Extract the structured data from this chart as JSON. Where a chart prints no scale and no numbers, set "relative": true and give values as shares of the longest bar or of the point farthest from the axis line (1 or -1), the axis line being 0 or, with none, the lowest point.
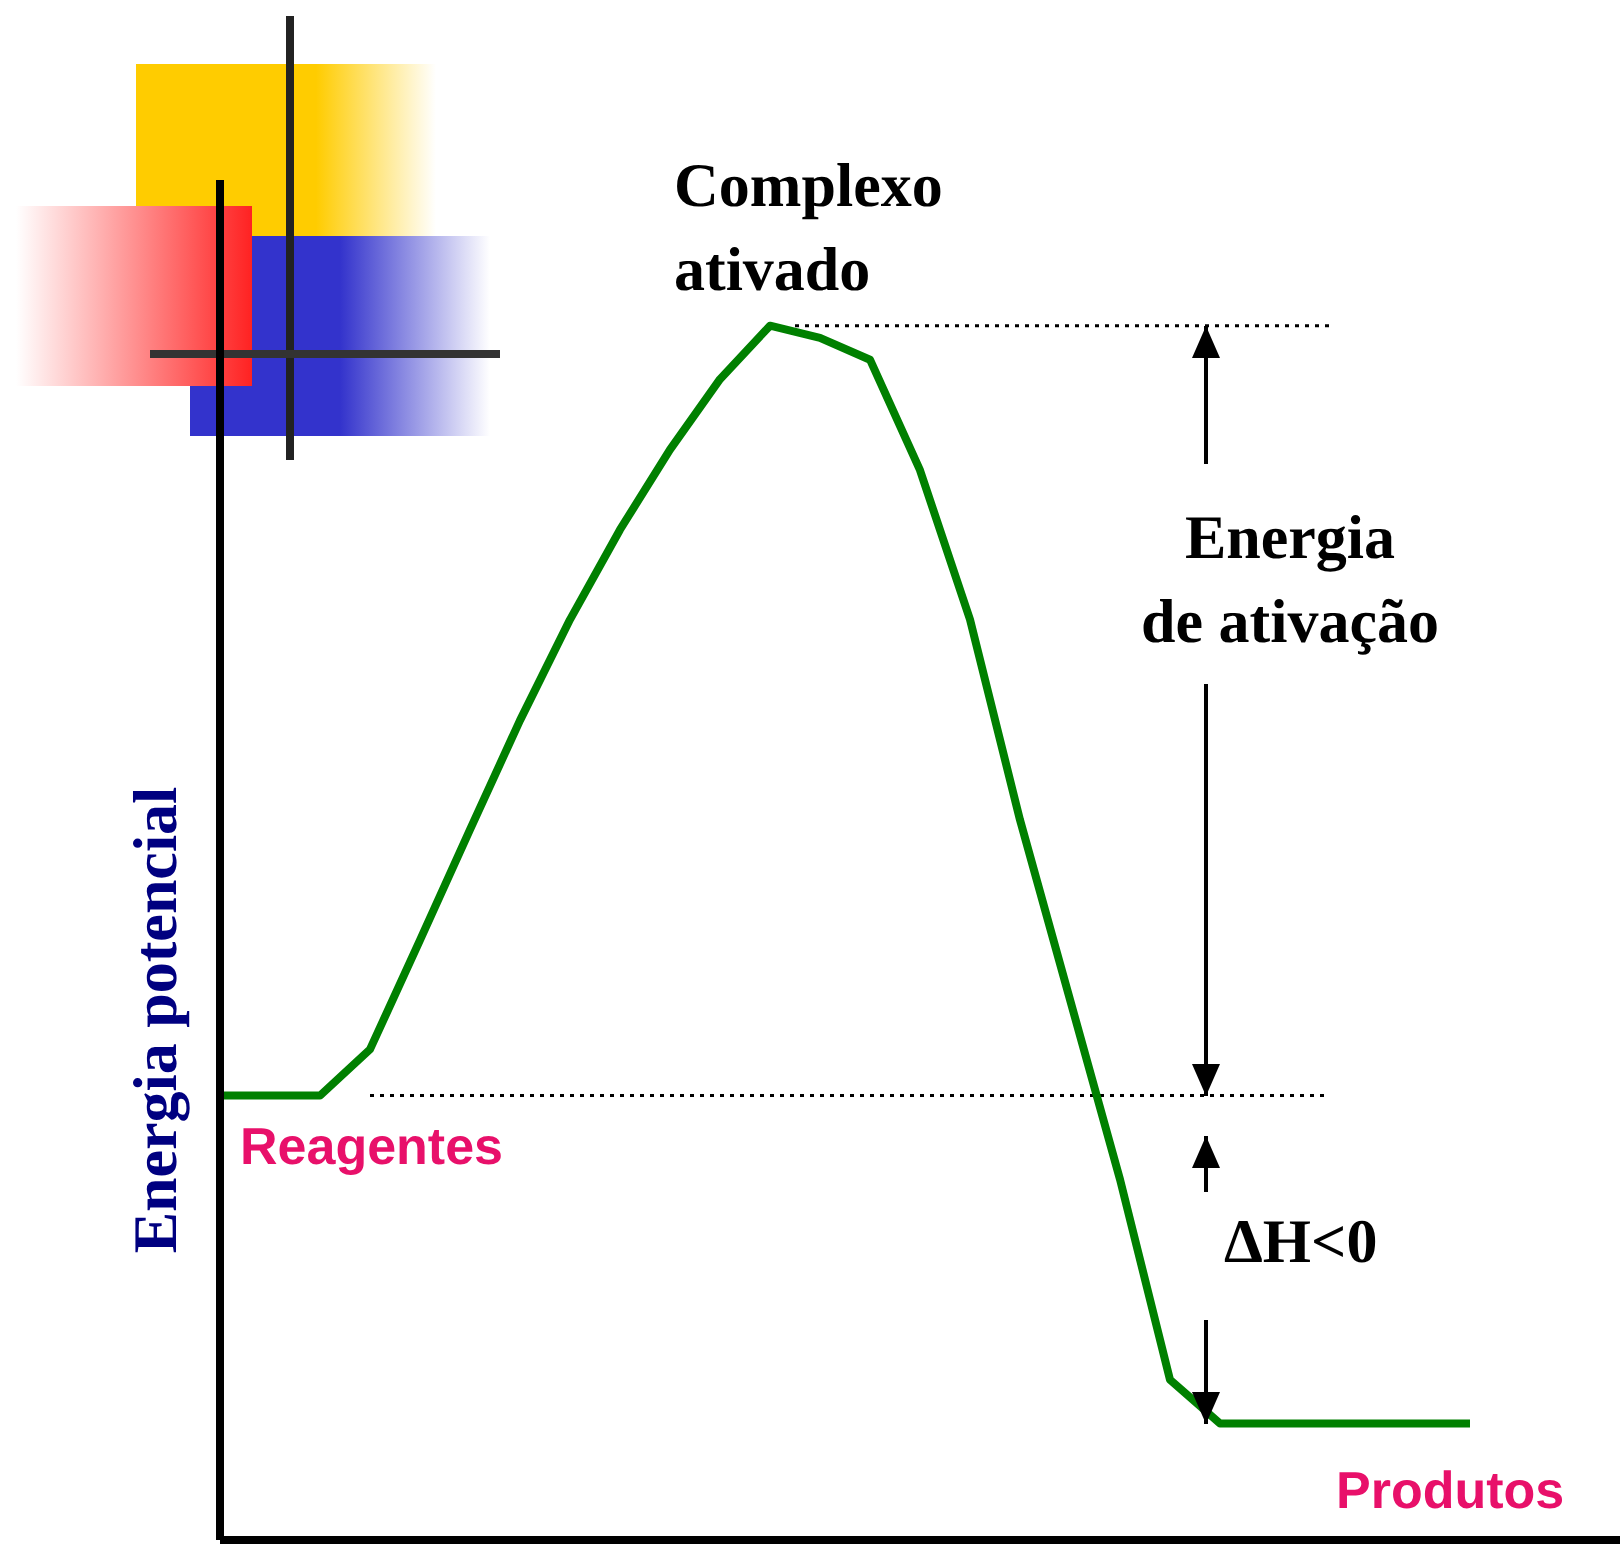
{
  "chart_data": {
    "type": "line",
    "relative": true,
    "ylabel": "Energia potencial",
    "categories": [
      null,
      null,
      null,
      null,
      null,
      null,
      null,
      null,
      null,
      null,
      null,
      null,
      null,
      null,
      null,
      null,
      null,
      null,
      null,
      null,
      null,
      null,
      null,
      null,
      null,
      null
    ],
    "series": [
      {
        "color": "#008000",
        "values": [
          0.366,
          0.366,
          0.366,
          0.404,
          0.494,
          0.585,
          0.675,
          0.758,
          0.832,
          0.898,
          0.956,
          1,
          0.99,
          0.972,
          0.881,
          0.758,
          0.593,
          0.445,
          0.297,
          0.132,
          0.096,
          0.096,
          0.096,
          0.096,
          0.096,
          0.096
        ]
      }
    ],
    "ref_lines": [
      {
        "axis": "y",
        "value": 1,
        "line_style": "dotted"
      },
      {
        "axis": "y",
        "value": 0.366,
        "line_style": "dotted"
      }
    ],
    "annotations": [
      "Complexo ativado",
      "Energia de ativação",
      "ΔH<0",
      "Reagentes",
      "Produtos"
    ],
    "grid": false,
    "marker": "none",
    "line_style": "solid"
  }
}
